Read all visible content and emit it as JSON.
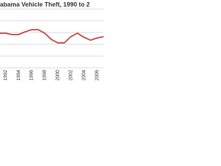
{
  "chart_data": {
    "type": "line",
    "title": "abama Vehicle Theft, 1990 to 2",
    "categories": [
      null,
      "1992",
      null,
      "1994",
      null,
      "1996",
      null,
      "1998",
      null,
      "2000",
      null,
      "2002",
      null,
      "2004",
      null,
      "2006",
      null
    ],
    "values": [
      2.94,
      2.94,
      2.82,
      2.82,
      3.06,
      3.24,
      3.24,
      2.94,
      2.41,
      2.12,
      2.12,
      2.65,
      2.94,
      2.59,
      2.35,
      2.53,
      2.65
    ],
    "color": "#c0504d",
    "ylim": [
      0,
      5
    ],
    "yticks": [
      0,
      1,
      2,
      3,
      4,
      5
    ],
    "grid": true
  }
}
